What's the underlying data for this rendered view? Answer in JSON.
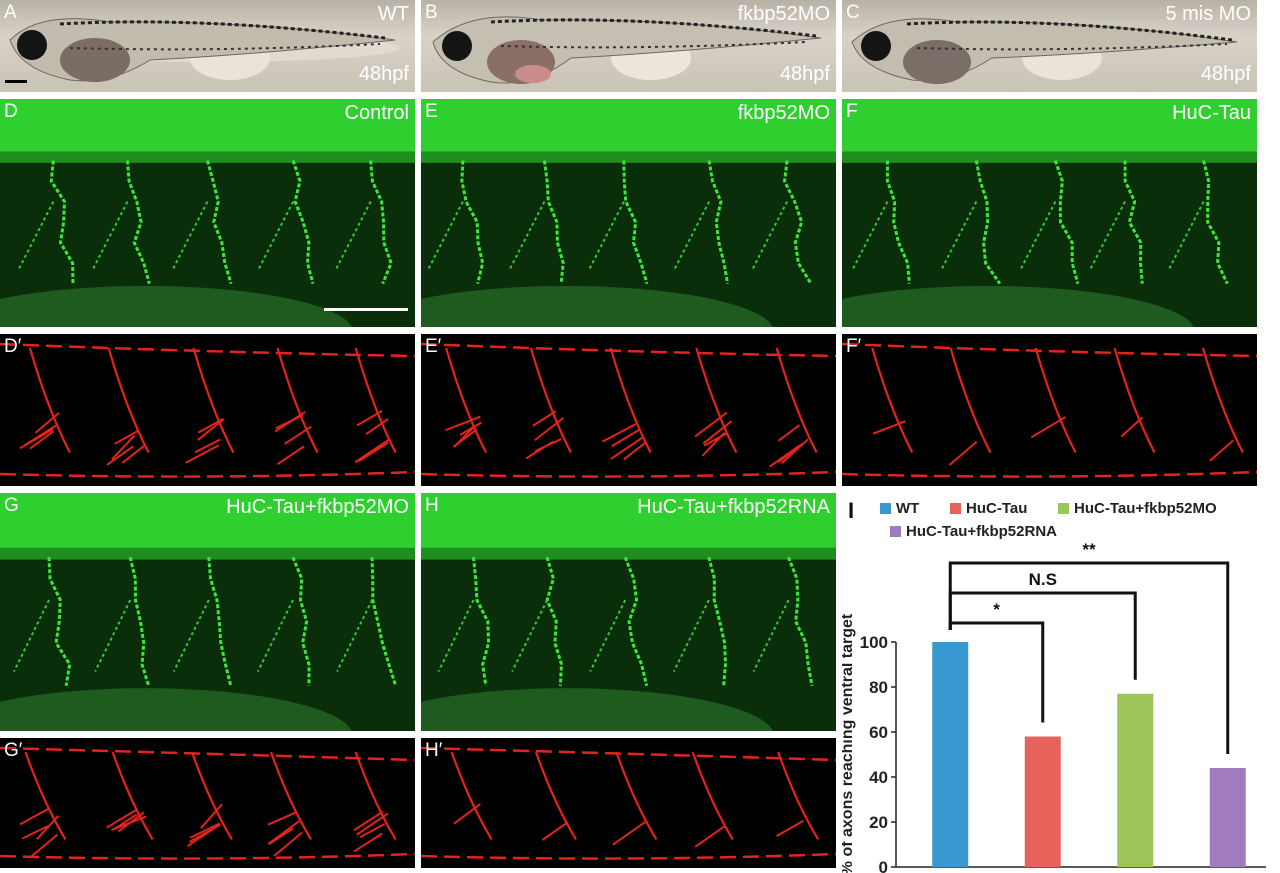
{
  "panels": {
    "A": {
      "label": "A",
      "info": "WT",
      "stage": "48hpf"
    },
    "B": {
      "label": "B",
      "info": "fkbp52MO",
      "stage": "48hpf"
    },
    "C": {
      "label": "C",
      "info": "5 mis MO",
      "stage": "48hpf"
    },
    "D": {
      "label": "D",
      "info": "Control"
    },
    "E": {
      "label": "E",
      "info": "fkbp52MO"
    },
    "F": {
      "label": "F",
      "info": "HuC-Tau"
    },
    "D2": {
      "label": "D′"
    },
    "E2": {
      "label": "E′"
    },
    "F2": {
      "label": "F′"
    },
    "G": {
      "label": "G",
      "info": "HuC-Tau+fkbp52MO"
    },
    "H": {
      "label": "H",
      "info": "HuC-Tau+fkbp52RNA"
    },
    "G2": {
      "label": "G′"
    },
    "H2": {
      "label": "H′"
    }
  },
  "chart_label": "I",
  "colors": {
    "wt": "#3a98d0",
    "huc_tau": "#e8625c",
    "huc_tau_mo": "#9cc65a",
    "huc_tau_rna": "#a07bbd",
    "trace": "#e3231c"
  },
  "chart_data": {
    "type": "bar",
    "categories": [
      "WT",
      "HuC-Tau",
      "HuC-Tau+fkbp52MO",
      "HuC-Tau+fkbp52RNA"
    ],
    "values": [
      100,
      58,
      77,
      44
    ],
    "ylabel": "% of axons reaching ventral target",
    "xlabel": "",
    "ylim": [
      0,
      100
    ],
    "yticks": [
      "0",
      "20",
      "40",
      "60",
      "80",
      "100"
    ],
    "legend": [
      "WT",
      "HuC-Tau",
      "HuC-Tau+fkbp52MO",
      "HuC-Tau+fkbp52RNA"
    ],
    "significance": [
      {
        "from": "WT",
        "to": "HuC-Tau",
        "label": "*"
      },
      {
        "from": "WT",
        "to": "HuC-Tau+fkbp52MO",
        "label": "N.S"
      },
      {
        "from": "WT",
        "to": "HuC-Tau+fkbp52RNA",
        "label": "**"
      }
    ]
  }
}
